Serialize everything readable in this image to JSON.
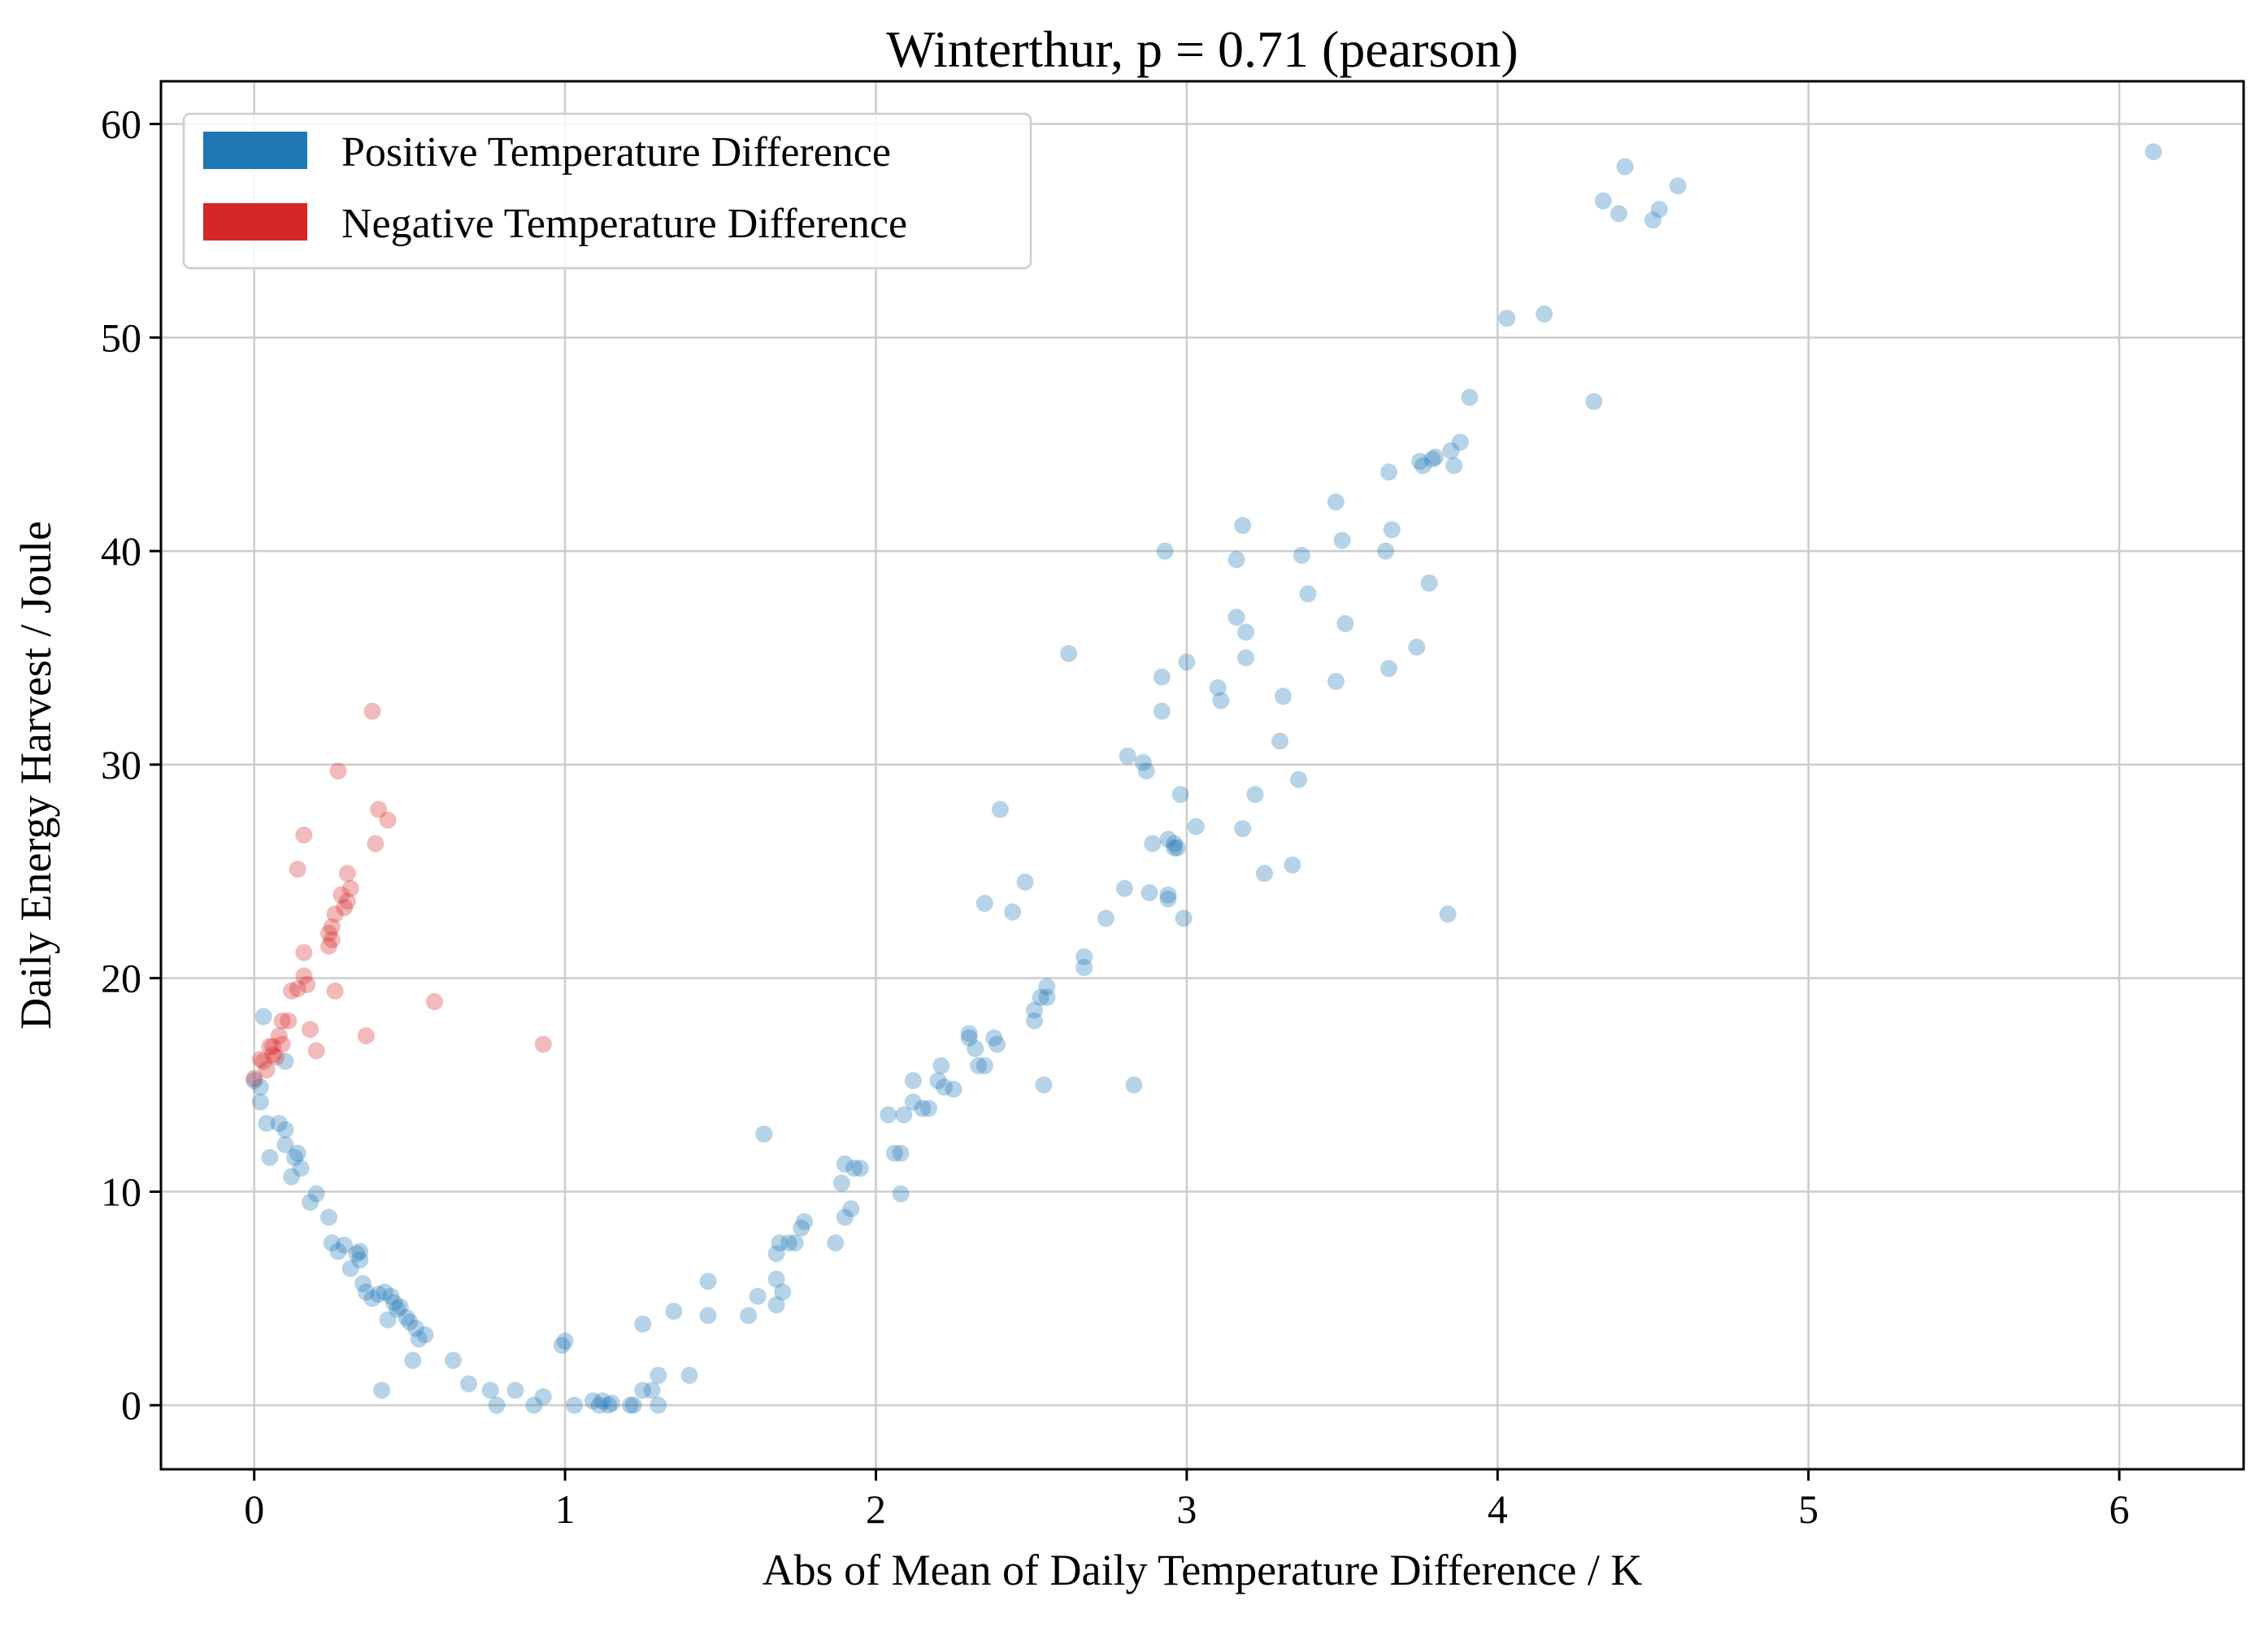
{
  "chart_data": {
    "type": "scatter",
    "title": "Winterthur, p = 0.71 (pearson)",
    "xlabel": "Abs of Mean of Daily Temperature Difference / K",
    "ylabel": "Daily Energy Harvest / Joule",
    "xlim": [
      -0.3,
      6.4
    ],
    "ylim": [
      -3,
      62
    ],
    "grid": true,
    "legend_position": "top-left",
    "x_ticks": [
      0,
      1,
      2,
      3,
      4,
      5,
      6
    ],
    "y_ticks": [
      0,
      10,
      20,
      30,
      40,
      50,
      60
    ],
    "series": [
      {
        "name": "Positive Temperature Difference",
        "color": "#1f77b4",
        "points": [
          [
            0.0,
            15.2
          ],
          [
            0.02,
            14.9
          ],
          [
            0.02,
            14.2
          ],
          [
            0.03,
            18.2
          ],
          [
            0.04,
            13.2
          ],
          [
            0.05,
            11.6
          ],
          [
            0.08,
            13.2
          ],
          [
            0.1,
            12.9
          ],
          [
            0.1,
            12.2
          ],
          [
            0.1,
            16.1
          ],
          [
            0.12,
            10.7
          ],
          [
            0.13,
            11.6
          ],
          [
            0.14,
            11.8
          ],
          [
            0.15,
            11.1
          ],
          [
            0.18,
            9.5
          ],
          [
            0.2,
            9.9
          ],
          [
            0.24,
            8.8
          ],
          [
            0.25,
            7.6
          ],
          [
            0.27,
            7.2
          ],
          [
            0.29,
            7.5
          ],
          [
            0.31,
            6.4
          ],
          [
            0.33,
            7.1
          ],
          [
            0.34,
            7.2
          ],
          [
            0.34,
            6.8
          ],
          [
            0.35,
            5.7
          ],
          [
            0.36,
            5.3
          ],
          [
            0.38,
            5.0
          ],
          [
            0.4,
            5.2
          ],
          [
            0.41,
            0.7
          ],
          [
            0.42,
            5.3
          ],
          [
            0.43,
            4.0
          ],
          [
            0.44,
            5.1
          ],
          [
            0.45,
            4.8
          ],
          [
            0.46,
            4.5
          ],
          [
            0.47,
            4.6
          ],
          [
            0.49,
            4.1
          ],
          [
            0.5,
            3.9
          ],
          [
            0.51,
            2.1
          ],
          [
            0.52,
            3.6
          ],
          [
            0.53,
            3.1
          ],
          [
            0.55,
            3.3
          ],
          [
            0.64,
            2.1
          ],
          [
            0.69,
            1.0
          ],
          [
            0.76,
            0.7
          ],
          [
            0.78,
            0.0
          ],
          [
            0.84,
            0.7
          ],
          [
            0.9,
            0.0
          ],
          [
            0.93,
            0.4
          ],
          [
            0.99,
            2.8
          ],
          [
            1.0,
            3.0
          ],
          [
            1.03,
            0.0
          ],
          [
            1.09,
            0.2
          ],
          [
            1.11,
            0.0
          ],
          [
            1.12,
            0.2
          ],
          [
            1.14,
            0.0
          ],
          [
            1.15,
            0.1
          ],
          [
            1.21,
            0.0
          ],
          [
            1.22,
            0.0
          ],
          [
            1.25,
            0.7
          ],
          [
            1.25,
            3.8
          ],
          [
            1.28,
            0.7
          ],
          [
            1.3,
            1.4
          ],
          [
            1.3,
            0.0
          ],
          [
            1.35,
            4.4
          ],
          [
            1.4,
            1.4
          ],
          [
            1.46,
            4.2
          ],
          [
            1.46,
            5.8
          ],
          [
            1.59,
            4.2
          ],
          [
            1.62,
            5.1
          ],
          [
            1.64,
            12.7
          ],
          [
            1.68,
            7.1
          ],
          [
            1.68,
            5.9
          ],
          [
            1.68,
            4.7
          ],
          [
            1.69,
            7.6
          ],
          [
            1.7,
            5.3
          ],
          [
            1.72,
            7.6
          ],
          [
            1.74,
            7.6
          ],
          [
            1.76,
            8.3
          ],
          [
            1.77,
            8.6
          ],
          [
            1.87,
            7.6
          ],
          [
            1.89,
            10.4
          ],
          [
            1.9,
            11.3
          ],
          [
            1.9,
            8.8
          ],
          [
            1.92,
            9.2
          ],
          [
            1.93,
            11.1
          ],
          [
            1.95,
            11.1
          ],
          [
            2.04,
            13.6
          ],
          [
            2.06,
            11.8
          ],
          [
            2.08,
            9.9
          ],
          [
            2.08,
            11.8
          ],
          [
            2.09,
            13.6
          ],
          [
            2.12,
            14.2
          ],
          [
            2.12,
            15.2
          ],
          [
            2.15,
            13.9
          ],
          [
            2.17,
            13.9
          ],
          [
            2.2,
            15.2
          ],
          [
            2.21,
            15.9
          ],
          [
            2.22,
            14.9
          ],
          [
            2.25,
            14.8
          ],
          [
            2.3,
            17.4
          ],
          [
            2.3,
            17.2
          ],
          [
            2.32,
            16.7
          ],
          [
            2.33,
            15.9
          ],
          [
            2.35,
            15.9
          ],
          [
            2.35,
            23.5
          ],
          [
            2.38,
            17.2
          ],
          [
            2.39,
            16.9
          ],
          [
            2.4,
            27.9
          ],
          [
            2.44,
            23.1
          ],
          [
            2.48,
            24.5
          ],
          [
            2.51,
            18.5
          ],
          [
            2.51,
            18.0
          ],
          [
            2.53,
            19.1
          ],
          [
            2.54,
            15.0
          ],
          [
            2.55,
            19.6
          ],
          [
            2.55,
            19.1
          ],
          [
            2.62,
            35.2
          ],
          [
            2.67,
            20.5
          ],
          [
            2.67,
            21.0
          ],
          [
            2.74,
            22.8
          ],
          [
            2.8,
            24.2
          ],
          [
            2.81,
            30.4
          ],
          [
            2.83,
            15.0
          ],
          [
            2.86,
            30.1
          ],
          [
            2.87,
            29.7
          ],
          [
            2.88,
            24.0
          ],
          [
            2.89,
            26.3
          ],
          [
            2.92,
            34.1
          ],
          [
            2.92,
            32.5
          ],
          [
            2.93,
            40.0
          ],
          [
            2.94,
            26.5
          ],
          [
            2.94,
            23.7
          ],
          [
            2.94,
            23.9
          ],
          [
            2.96,
            26.3
          ],
          [
            2.96,
            26.1
          ],
          [
            2.97,
            26.1
          ],
          [
            2.98,
            28.6
          ],
          [
            2.99,
            22.8
          ],
          [
            3.0,
            34.8
          ],
          [
            3.03,
            27.1
          ],
          [
            3.1,
            33.6
          ],
          [
            3.11,
            33.0
          ],
          [
            3.16,
            39.6
          ],
          [
            3.16,
            36.9
          ],
          [
            3.18,
            27.0
          ],
          [
            3.18,
            41.2
          ],
          [
            3.19,
            36.2
          ],
          [
            3.19,
            35.0
          ],
          [
            3.22,
            28.6
          ],
          [
            3.25,
            24.9
          ],
          [
            3.3,
            31.1
          ],
          [
            3.31,
            33.2
          ],
          [
            3.34,
            25.3
          ],
          [
            3.36,
            29.3
          ],
          [
            3.37,
            39.8
          ],
          [
            3.39,
            38.0
          ],
          [
            3.48,
            33.9
          ],
          [
            3.48,
            42.3
          ],
          [
            3.5,
            40.5
          ],
          [
            3.51,
            36.6
          ],
          [
            3.64,
            40.0
          ],
          [
            3.65,
            43.7
          ],
          [
            3.65,
            34.5
          ],
          [
            3.66,
            41.0
          ],
          [
            3.74,
            35.5
          ],
          [
            3.75,
            44.2
          ],
          [
            3.76,
            44.0
          ],
          [
            3.78,
            38.5
          ],
          [
            3.79,
            44.3
          ],
          [
            3.8,
            44.4
          ],
          [
            3.84,
            23.0
          ],
          [
            3.85,
            44.7
          ],
          [
            3.86,
            44.0
          ],
          [
            3.88,
            45.1
          ],
          [
            3.91,
            47.2
          ],
          [
            4.03,
            50.9
          ],
          [
            4.15,
            51.1
          ],
          [
            4.31,
            47.0
          ],
          [
            4.34,
            56.4
          ],
          [
            4.39,
            55.8
          ],
          [
            4.41,
            58.0
          ],
          [
            4.5,
            55.5
          ],
          [
            4.52,
            56.0
          ],
          [
            4.58,
            57.1
          ],
          [
            6.11,
            58.7
          ]
        ]
      },
      {
        "name": "Negative Temperature Difference",
        "color": "#d62728",
        "points": [
          [
            0.0,
            15.3
          ],
          [
            0.02,
            16.2
          ],
          [
            0.03,
            16.1
          ],
          [
            0.04,
            15.7
          ],
          [
            0.05,
            16.8
          ],
          [
            0.06,
            16.4
          ],
          [
            0.06,
            16.8
          ],
          [
            0.07,
            16.3
          ],
          [
            0.08,
            17.3
          ],
          [
            0.09,
            18.0
          ],
          [
            0.09,
            16.9
          ],
          [
            0.11,
            18.0
          ],
          [
            0.12,
            19.4
          ],
          [
            0.14,
            19.5
          ],
          [
            0.14,
            25.1
          ],
          [
            0.16,
            21.2
          ],
          [
            0.16,
            26.7
          ],
          [
            0.16,
            20.1
          ],
          [
            0.17,
            19.7
          ],
          [
            0.18,
            17.6
          ],
          [
            0.2,
            16.6
          ],
          [
            0.24,
            21.5
          ],
          [
            0.24,
            22.1
          ],
          [
            0.25,
            21.8
          ],
          [
            0.25,
            22.4
          ],
          [
            0.26,
            23.0
          ],
          [
            0.26,
            19.4
          ],
          [
            0.27,
            29.7
          ],
          [
            0.28,
            23.9
          ],
          [
            0.29,
            23.3
          ],
          [
            0.3,
            23.6
          ],
          [
            0.3,
            24.9
          ],
          [
            0.31,
            24.2
          ],
          [
            0.36,
            17.3
          ],
          [
            0.38,
            32.5
          ],
          [
            0.39,
            26.3
          ],
          [
            0.4,
            27.9
          ],
          [
            0.43,
            27.4
          ],
          [
            0.58,
            18.9
          ],
          [
            0.93,
            16.9
          ]
        ]
      }
    ]
  }
}
